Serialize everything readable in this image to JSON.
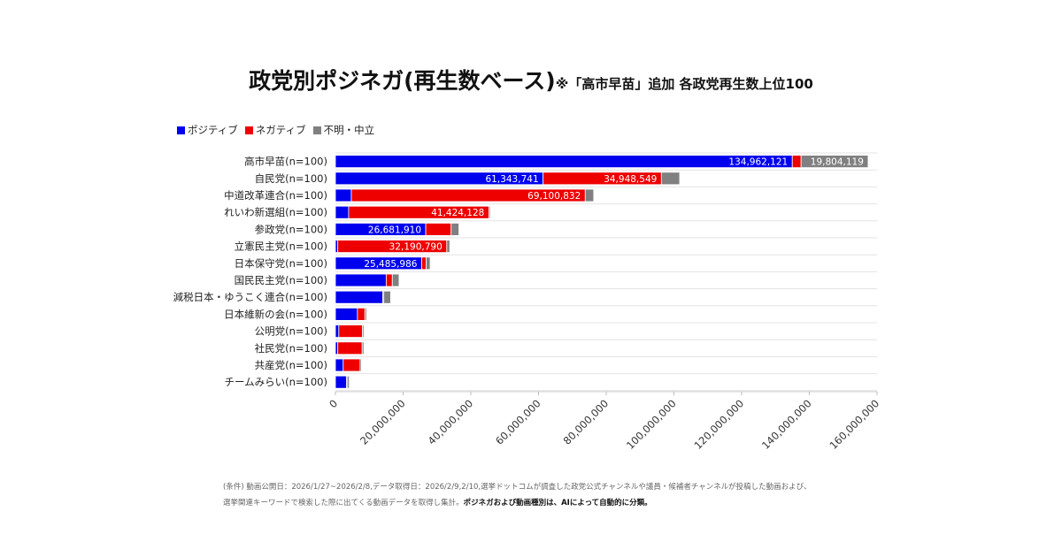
{
  "title": {
    "main": "政党別ポジネガ(再生数ベース)",
    "sub": "※「高市早苗」追加 各政党再生数上位100"
  },
  "colors": {
    "positive": "#0000ee",
    "negative": "#ee0000",
    "neutral": "#808080"
  },
  "chart_data": {
    "type": "bar",
    "orientation": "horizontal",
    "stacked": true,
    "legend_position": "top-left",
    "grid": true,
    "xlim": [
      0,
      160000000
    ],
    "x_ticks": [
      "0",
      "20,000,000",
      "40,000,000",
      "60,000,000",
      "80,000,000",
      "100,000,000",
      "120,000,000",
      "140,000,000",
      "160,000,000"
    ],
    "categories": [
      "高市早苗(n=100)",
      "自民党(n=100)",
      "中道改革連合(n=100)",
      "れいわ新選組(n=100)",
      "参政党(n=100)",
      "立憲民主党(n=100)",
      "日本保守党(n=100)",
      "国民民主党(n=100)",
      "減税日本・ゆうこく連合(n=100)",
      "日本維新の会(n=100)",
      "公明党(n=100)",
      "社民党(n=100)",
      "共産党(n=100)",
      "チームみらい(n=100)"
    ],
    "series": [
      {
        "name": "ポジティブ",
        "color": "#0000ee",
        "values": [
          134962121,
          61343741,
          4700000,
          3900000,
          26681910,
          700000,
          25485986,
          15000000,
          14000000,
          6500000,
          1000000,
          700000,
          2300000,
          3300000
        ],
        "labels": [
          "134,962,121",
          "61,343,741",
          "",
          "",
          "26,681,910",
          "",
          "25,485,986",
          "",
          "",
          "",
          "",
          "",
          "",
          ""
        ]
      },
      {
        "name": "ネガティブ",
        "color": "#ee0000",
        "values": [
          2600000,
          34948549,
          69100832,
          41424128,
          7500000,
          32190790,
          1300000,
          1800000,
          300000,
          2200000,
          7000000,
          7200000,
          5000000,
          300000
        ],
        "labels": [
          "",
          "34,948,549",
          "69,100,832",
          "41,424,128",
          "",
          "32,190,790",
          "",
          "",
          "",
          "",
          "",
          "",
          "",
          ""
        ]
      },
      {
        "name": "不明・中立",
        "color": "#808080",
        "values": [
          19804119,
          5400000,
          2500000,
          400000,
          2300000,
          900000,
          1200000,
          2000000,
          2000000,
          500000,
          400000,
          500000,
          400000,
          500000
        ],
        "labels": [
          "19,804,119",
          "",
          "",
          "",
          "",
          "",
          "",
          "",
          "",
          "",
          "",
          "",
          "",
          ""
        ]
      }
    ]
  },
  "footer": {
    "line1": "(条件) 動画公開日：2026/1/27~2026/2/8,データ取得日：2026/2/9,2/10,選挙ドットコムが調査した政党公式チャンネルや議員・候補者チャンネルが投稿した動画および、",
    "line2_prefix": "選挙関連キーワードで検索した際に出てくる動画データを取得し集計。",
    "line2_em": "ポジネガおよび動画種別は、AIによって自動的に分類。"
  }
}
